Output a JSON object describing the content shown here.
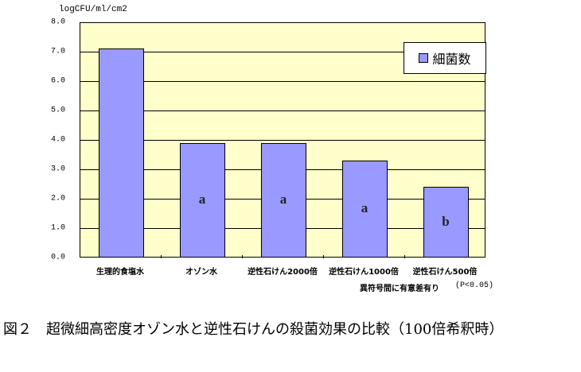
{
  "chart_data": {
    "type": "bar",
    "title": "図２　超微細高密度オゾン水と逆性石けんの殺菌効果の比較（100倍希釈時）",
    "xlabel": "",
    "ylabel": "logCFU/ml/cm2",
    "ylim": [
      0,
      8
    ],
    "yticks": [
      "0.0",
      "1.0",
      "2.0",
      "3.0",
      "4.0",
      "5.0",
      "6.0",
      "7.0",
      "8.0"
    ],
    "grid": true,
    "legend_position": "upper right",
    "categories": [
      "生理的食塩水",
      "オゾン水",
      "逆性石けん2000倍",
      "逆性石けん1000倍",
      "逆性石けん500倍"
    ],
    "series": [
      {
        "name": "細菌数",
        "color": "#9999ff",
        "values": [
          7.1,
          3.9,
          3.9,
          3.3,
          2.4
        ]
      }
    ],
    "annotations": [
      "",
      "a",
      "a",
      "a",
      "b"
    ],
    "note": "異符号間に有意差有り　(P<0.05)"
  },
  "labels": {
    "unit": "logCFU/ml/cm2",
    "legend": "細菌数",
    "note": "異符号間に有意差有り",
    "p_value": "(P<0.05)",
    "caption": "図２　超微細高密度オゾン水と逆性石けんの殺菌効果の比較（100倍希釈時）"
  }
}
